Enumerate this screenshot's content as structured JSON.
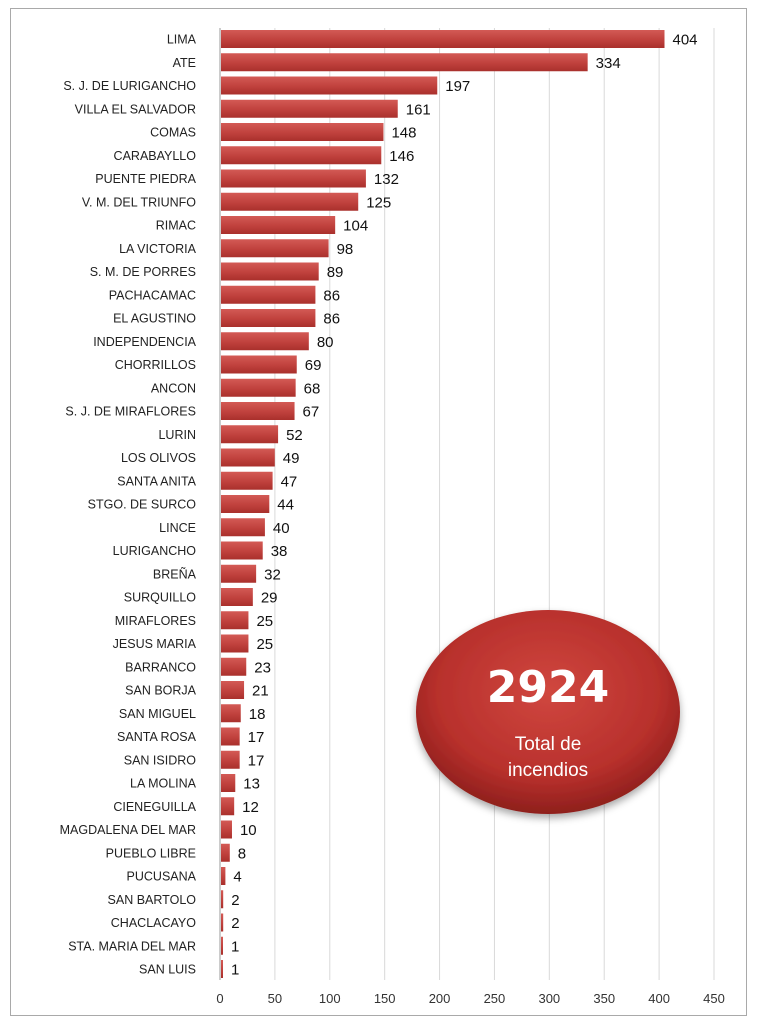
{
  "chart_data": {
    "type": "bar",
    "orientation": "horizontal",
    "title": "",
    "xlabel": "",
    "ylabel": "",
    "xlim": [
      0,
      450
    ],
    "x_ticks": [
      0,
      50,
      100,
      150,
      200,
      250,
      300,
      350,
      400,
      450
    ],
    "grid": "vertical",
    "bar_color": "#c0413d",
    "categories": [
      "LIMA",
      "ATE",
      "S. J. DE LURIGANCHO",
      "VILLA EL SALVADOR",
      "COMAS",
      "CARABAYLLO",
      "PUENTE PIEDRA",
      "V. M. DEL TRIUNFO",
      "RIMAC",
      "LA VICTORIA",
      "S. M. DE PORRES",
      "PACHACAMAC",
      "EL AGUSTINO",
      "INDEPENDENCIA",
      "CHORRILLOS",
      "ANCON",
      "S. J. DE MIRAFLORES",
      "LURIN",
      "LOS OLIVOS",
      "SANTA ANITA",
      "STGO. DE SURCO",
      "LINCE",
      "LURIGANCHO",
      "BREÑA",
      "SURQUILLO",
      "MIRAFLORES",
      "JESUS MARIA",
      "BARRANCO",
      "SAN BORJA",
      "SAN MIGUEL",
      "SANTA ROSA",
      "SAN ISIDRO",
      "LA MOLINA",
      "CIENEGUILLA",
      "MAGDALENA DEL MAR",
      "PUEBLO LIBRE",
      "PUCUSANA",
      "SAN BARTOLO",
      "CHACLACAYO",
      "STA. MARIA DEL MAR",
      "SAN LUIS"
    ],
    "values": [
      404,
      334,
      197,
      161,
      148,
      146,
      132,
      125,
      104,
      98,
      89,
      86,
      86,
      80,
      69,
      68,
      67,
      52,
      49,
      47,
      44,
      40,
      38,
      32,
      29,
      25,
      25,
      23,
      21,
      18,
      17,
      17,
      13,
      12,
      10,
      8,
      4,
      2,
      2,
      1,
      1
    ]
  },
  "total_badge": {
    "value": "2924",
    "label_line1": "Total de",
    "label_line2": "incendios",
    "color": "#b8302c"
  }
}
